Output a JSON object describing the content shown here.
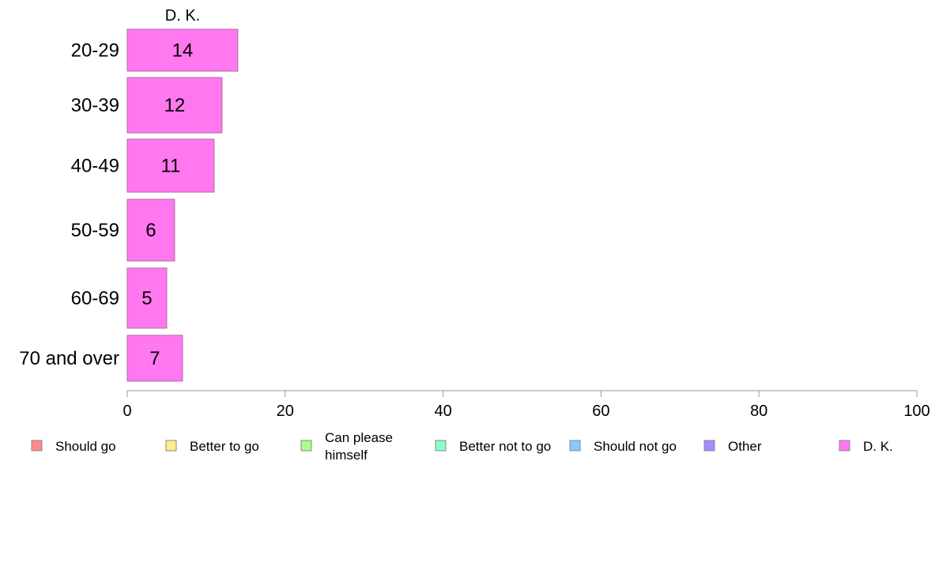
{
  "chart_data": {
    "type": "bar",
    "orientation": "horizontal",
    "title": "D. K.",
    "categories": [
      "20-29",
      "30-39",
      "40-49",
      "50-59",
      "60-69",
      "70 and over"
    ],
    "series": [
      {
        "name": "D. K.",
        "values": [
          14,
          12,
          11,
          6,
          5,
          7
        ]
      }
    ],
    "xlim": [
      0,
      100
    ],
    "xticks": [
      0,
      20,
      40,
      60,
      80,
      100
    ],
    "grid": false,
    "legend_position": "bottom",
    "legend": [
      {
        "label": "Should go",
        "lines": [
          "Should go"
        ],
        "color": "#ff8a8a"
      },
      {
        "label": "Better to go",
        "lines": [
          "Better to go"
        ],
        "color": "#ffec8a"
      },
      {
        "label": "Can please himself",
        "lines": [
          "Can please",
          "himself"
        ],
        "color": "#aaff88"
      },
      {
        "label": "Better not to go",
        "lines": [
          "Better not to go"
        ],
        "color": "#88ffcc"
      },
      {
        "label": "Should not go",
        "lines": [
          "Should not go"
        ],
        "color": "#88c8ff"
      },
      {
        "label": "Other",
        "lines": [
          "Other"
        ],
        "color": "#a68aff"
      },
      {
        "label": "D. K.",
        "lines": [
          "D. K."
        ],
        "color": "#ff78f0"
      }
    ],
    "bar_color": "#ff78f0",
    "bar_stroke": "#b06aa8",
    "axis_color": "#999999"
  }
}
